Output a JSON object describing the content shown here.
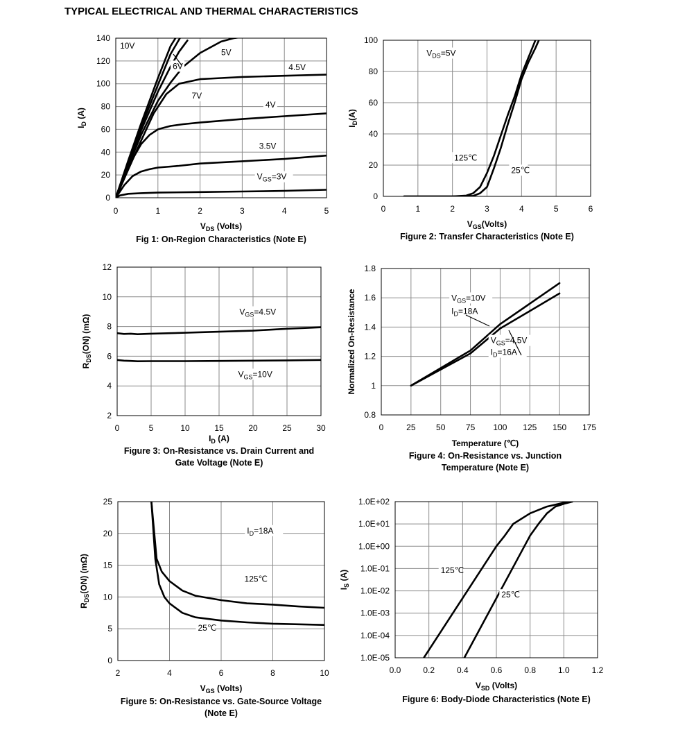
{
  "page_title": "TYPICAL ELECTRICAL AND THERMAL CHARACTERISTICS",
  "chart_data": [
    {
      "id": "fig1",
      "type": "line",
      "title": "Fig 1: On-Region Characteristics (Note E)",
      "xlabel": "V_DS (Volts)",
      "ylabel": "I_D (A)",
      "xlim": [
        0,
        5
      ],
      "ylim": [
        0,
        140
      ],
      "xticks": [
        "0",
        "1",
        "2",
        "3",
        "4",
        "5"
      ],
      "yticks": [
        "0",
        "20",
        "40",
        "60",
        "80",
        "100",
        "120",
        "140"
      ],
      "grid": true,
      "series": [
        {
          "name": "10V",
          "x": [
            0,
            0.3,
            0.6,
            1,
            1.3,
            1.5
          ],
          "y": [
            0,
            33,
            65,
            105,
            133,
            145
          ]
        },
        {
          "name": "7V",
          "x": [
            0,
            0.3,
            0.6,
            1,
            1.3,
            1.6
          ],
          "y": [
            0,
            32,
            62,
            99,
            126,
            145
          ]
        },
        {
          "name": "6V",
          "x": [
            0,
            0.3,
            0.6,
            1,
            1.3,
            1.5,
            1.7
          ],
          "y": [
            0,
            30,
            59,
            93,
            115,
            128,
            138
          ]
        },
        {
          "name": "5V",
          "x": [
            0,
            0.3,
            0.6,
            0.8,
            1,
            1.3,
            1.6,
            2,
            2.5,
            2.8,
            3
          ],
          "y": [
            0,
            28,
            55,
            70,
            85,
            101,
            115,
            127,
            137,
            140,
            141
          ]
        },
        {
          "name": "4.5V",
          "x": [
            0,
            0.3,
            0.6,
            0.9,
            1.2,
            1.5,
            2,
            2.5,
            3,
            4,
            5
          ],
          "y": [
            0,
            25,
            50,
            74,
            91,
            100,
            104,
            105,
            106,
            107,
            108
          ]
        },
        {
          "name": "4V",
          "x": [
            0,
            0.2,
            0.4,
            0.6,
            0.8,
            1,
            1.3,
            1.6,
            2,
            3,
            4,
            5
          ],
          "y": [
            0,
            17,
            34,
            47,
            55,
            60,
            63,
            64.5,
            66,
            69,
            71.5,
            74
          ]
        },
        {
          "name": "3.5V",
          "x": [
            0,
            0.2,
            0.4,
            0.6,
            0.8,
            1,
            1.5,
            2,
            2.5,
            3,
            4,
            5
          ],
          "y": [
            0,
            11,
            19,
            23,
            25,
            26.5,
            28,
            30,
            31,
            32,
            34,
            37
          ]
        },
        {
          "name": "V_GS=3V",
          "x": [
            0,
            0.1,
            0.3,
            0.6,
            1,
            2,
            3,
            4,
            5
          ],
          "y": [
            0,
            2,
            3.5,
            4,
            4.5,
            5,
            5.5,
            6,
            7
          ]
        }
      ],
      "annotations": [
        "10V",
        "5V",
        "6V",
        "4.5V",
        "7V",
        "4V",
        "3.5V",
        "V_GS=3V"
      ]
    },
    {
      "id": "fig2",
      "type": "line",
      "title": "Figure 2: Transfer Characteristics (Note E)",
      "xlabel": "V_GS(Volts)",
      "ylabel": "I_D(A)",
      "xlim": [
        0,
        6
      ],
      "ylim": [
        0,
        100
      ],
      "xticks": [
        "0",
        "1",
        "2",
        "3",
        "4",
        "5",
        "6"
      ],
      "yticks": [
        "0",
        "20",
        "40",
        "60",
        "80",
        "100"
      ],
      "grid": true,
      "series": [
        {
          "name": "125℃",
          "x": [
            0.6,
            1,
            2,
            2.4,
            2.6,
            2.8,
            3,
            3.2,
            3.4,
            3.6,
            3.8,
            4,
            4.2,
            4.4
          ],
          "y": [
            0,
            0,
            0,
            0.5,
            2,
            6,
            15,
            26,
            39,
            52,
            64,
            78,
            89,
            100
          ]
        },
        {
          "name": "25℃",
          "x": [
            0.6,
            1,
            2,
            2.6,
            2.8,
            3,
            3.2,
            3.4,
            3.6,
            3.8,
            4,
            4.2,
            4.4,
            4.5
          ],
          "y": [
            0,
            0,
            0,
            0.3,
            2,
            6,
            18,
            31,
            46,
            60,
            75,
            86,
            95,
            100
          ]
        }
      ],
      "annotations": [
        "V_DS=5V",
        "125℃",
        "25℃"
      ]
    },
    {
      "id": "fig3",
      "type": "line",
      "title": "Figure 3: On-Resistance vs. Drain Current and Gate Voltage (Note E)",
      "xlabel": "I_D (A)",
      "ylabel": "R_DS(ON) (mΩ)",
      "xlim": [
        0,
        30
      ],
      "ylim": [
        2,
        12
      ],
      "xticks": [
        "0",
        "5",
        "10",
        "15",
        "20",
        "25",
        "30"
      ],
      "yticks": [
        "2",
        "4",
        "6",
        "8",
        "10",
        "12"
      ],
      "grid": true,
      "series": [
        {
          "name": "V_GS=4.5V",
          "x": [
            0,
            1,
            2,
            3,
            5,
            10,
            15,
            20,
            25,
            30
          ],
          "y": [
            7.55,
            7.5,
            7.52,
            7.48,
            7.52,
            7.58,
            7.65,
            7.72,
            7.85,
            7.95
          ]
        },
        {
          "name": "V_GS=10V",
          "x": [
            0,
            1,
            2,
            3,
            5,
            10,
            15,
            20,
            25,
            30
          ],
          "y": [
            5.75,
            5.7,
            5.68,
            5.66,
            5.67,
            5.67,
            5.68,
            5.7,
            5.72,
            5.75
          ]
        }
      ],
      "annotations": [
        "V_GS=4.5V",
        "V_GS=10V"
      ]
    },
    {
      "id": "fig4",
      "type": "line",
      "title": "Figure 4: On-Resistance vs. Junction Temperature (Note E)",
      "xlabel": "Temperature (℃)",
      "ylabel": "Normalized On-Resistance",
      "xlim": [
        0,
        175
      ],
      "ylim": [
        0.8,
        1.8
      ],
      "xticks": [
        "0",
        "25",
        "50",
        "75",
        "100",
        "125",
        "150",
        "175"
      ],
      "yticks": [
        "0.8",
        "1",
        "1.2",
        "1.4",
        "1.6",
        "1.8"
      ],
      "grid": true,
      "series": [
        {
          "name": "V_GS=10V I_D=18A",
          "x": [
            25,
            50,
            75,
            100,
            125,
            150
          ],
          "y": [
            1,
            1.12,
            1.24,
            1.42,
            1.56,
            1.7
          ]
        },
        {
          "name": "V_GS=4.5V I_D=16A",
          "x": [
            25,
            50,
            75,
            100,
            125,
            150
          ],
          "y": [
            1,
            1.11,
            1.22,
            1.39,
            1.51,
            1.63
          ]
        }
      ],
      "annotations": [
        "V_GS=10V",
        "I_D=18A",
        "V_GS=4.5V",
        "I_D=16A"
      ]
    },
    {
      "id": "fig5",
      "type": "line",
      "title": "Figure 5: On-Resistance vs. Gate-Source Voltage (Note E)",
      "xlabel": "V_GS (Volts)",
      "ylabel": "R_DS(ON) (mΩ)",
      "xlim": [
        2,
        10
      ],
      "ylim": [
        0,
        25
      ],
      "xticks": [
        "2",
        "4",
        "6",
        "8",
        "10"
      ],
      "yticks": [
        "0",
        "5",
        "10",
        "15",
        "20",
        "25"
      ],
      "grid": true,
      "series": [
        {
          "name": "125℃",
          "x": [
            3.3,
            3.5,
            3.7,
            4,
            4.5,
            5,
            6,
            7,
            8,
            9,
            10
          ],
          "y": [
            25,
            16,
            14,
            12.5,
            11,
            10.2,
            9.5,
            9,
            8.8,
            8.5,
            8.3
          ]
        },
        {
          "name": "25℃",
          "x": [
            3.3,
            3.45,
            3.6,
            3.8,
            4,
            4.5,
            5,
            6,
            7,
            8,
            9,
            10
          ],
          "y": [
            25,
            16,
            12,
            10,
            9,
            7.5,
            6.8,
            6.3,
            6,
            5.8,
            5.7,
            5.6
          ]
        }
      ],
      "annotations": [
        "I_D=18A",
        "125℃",
        "25℃"
      ]
    },
    {
      "id": "fig6",
      "type": "line",
      "yscale": "log",
      "title": "Figure 6: Body-Diode Characteristics (Note E)",
      "xlabel": "V_SD (Volts)",
      "ylabel": "I_S (A)",
      "xlim": [
        0,
        1.2
      ],
      "ylim": [
        1e-05,
        100
      ],
      "xticks": [
        "0.0",
        "0.2",
        "0.4",
        "0.6",
        "0.8",
        "1.0",
        "1.2"
      ],
      "yticks": [
        "1.0E-05",
        "1.0E-04",
        "1.0E-03",
        "1.0E-02",
        "1.0E-01",
        "1.0E+00",
        "1.0E+01",
        "1.0E+02"
      ],
      "grid": true,
      "series": [
        {
          "name": "125℃",
          "x": [
            0.17,
            0.6,
            0.65,
            0.7,
            0.8,
            0.9,
            1.0,
            1.05
          ],
          "y": [
            1e-05,
            1,
            3,
            10,
            30,
            60,
            90,
            100
          ]
        },
        {
          "name": "25℃",
          "x": [
            0.41,
            0.8,
            0.85,
            0.9,
            0.95,
            1.0,
            1.05
          ],
          "y": [
            1e-05,
            3,
            10,
            30,
            60,
            80,
            100
          ]
        }
      ],
      "annotations": [
        "125℃",
        "25℃"
      ]
    }
  ]
}
